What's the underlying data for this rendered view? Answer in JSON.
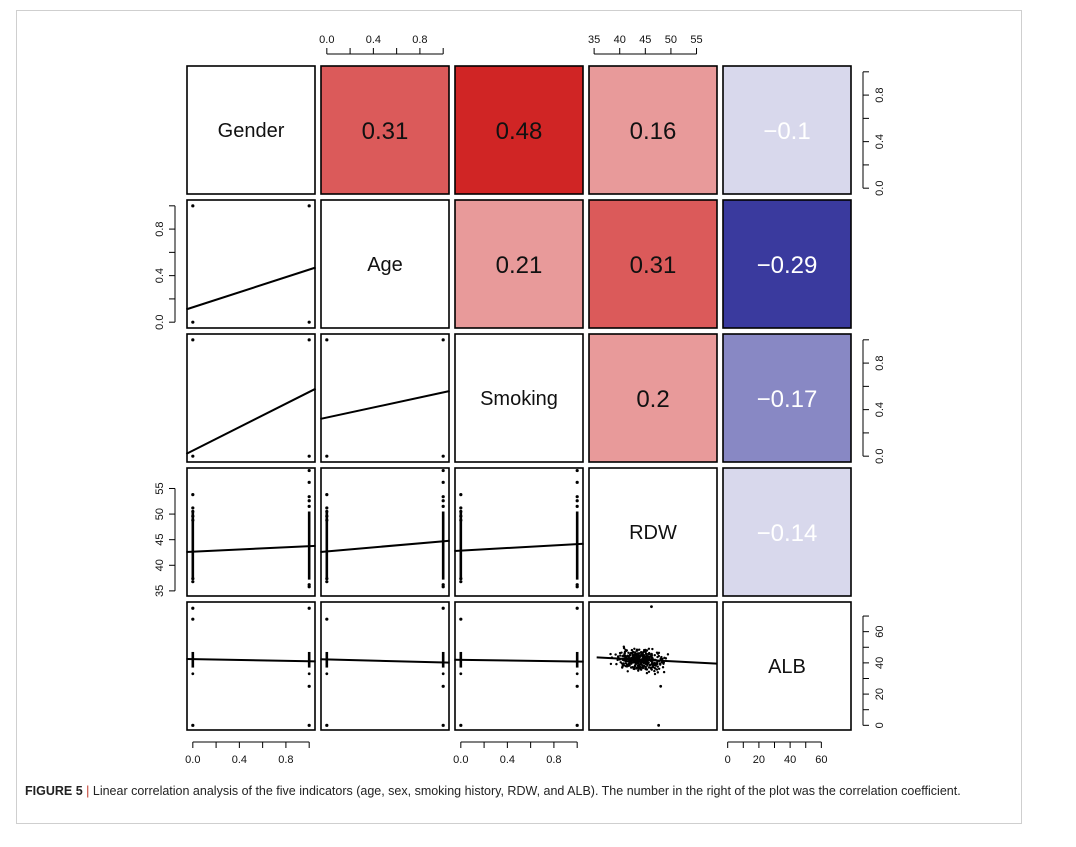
{
  "chart_data": {
    "type": "scatter-matrix",
    "variables": [
      "Gender",
      "Age",
      "Smoking",
      "RDW",
      "ALB"
    ],
    "correlations": [
      {
        "row": "Gender",
        "col": "Age",
        "value": "0.31",
        "r": 0.31,
        "color": "#db5a5a",
        "text_color": "#111111"
      },
      {
        "row": "Gender",
        "col": "Smoking",
        "value": "0.48",
        "r": 0.48,
        "color": "#d02525",
        "text_color": "#111111"
      },
      {
        "row": "Gender",
        "col": "RDW",
        "value": "0.16",
        "r": 0.16,
        "color": "#e89a9a",
        "text_color": "#111111"
      },
      {
        "row": "Gender",
        "col": "ALB",
        "value": "−0.1",
        "r": -0.1,
        "color": "#d8d8ec",
        "text_color": "#ffffff"
      },
      {
        "row": "Age",
        "col": "Smoking",
        "value": "0.21",
        "r": 0.21,
        "color": "#e89a9a",
        "text_color": "#111111"
      },
      {
        "row": "Age",
        "col": "RDW",
        "value": "0.31",
        "r": 0.31,
        "color": "#db5a5a",
        "text_color": "#111111"
      },
      {
        "row": "Age",
        "col": "ALB",
        "value": "−0.29",
        "r": -0.29,
        "color": "#3a3a9e",
        "text_color": "#ffffff"
      },
      {
        "row": "Smoking",
        "col": "RDW",
        "value": "0.2",
        "r": 0.2,
        "color": "#e89a9a",
        "text_color": "#111111"
      },
      {
        "row": "Smoking",
        "col": "ALB",
        "value": "−0.17",
        "r": -0.17,
        "color": "#8888c4",
        "text_color": "#ffffff"
      },
      {
        "row": "RDW",
        "col": "ALB",
        "value": "−0.14",
        "r": -0.14,
        "color": "#d8d8ec",
        "text_color": "#ffffff"
      }
    ],
    "ranges": {
      "Gender": [
        -0.05,
        1.05
      ],
      "Age": [
        -0.05,
        1.05
      ],
      "Smoking": [
        -0.05,
        1.05
      ],
      "RDW": [
        34,
        59
      ],
      "ALB": [
        -3,
        79
      ]
    },
    "regression_lines": [
      {
        "row": "Age",
        "col": "Gender",
        "y0": 0.11,
        "y1": 0.47
      },
      {
        "row": "Smoking",
        "col": "Gender",
        "y0": 0.02,
        "y1": 0.58
      },
      {
        "row": "Smoking",
        "col": "Age",
        "y0": 0.32,
        "y1": 0.56
      },
      {
        "row": "RDW",
        "col": "Gender",
        "y0": 42.6,
        "y1": 43.8
      },
      {
        "row": "RDW",
        "col": "Age",
        "y0": 42.6,
        "y1": 44.8
      },
      {
        "row": "RDW",
        "col": "Smoking",
        "y0": 42.8,
        "y1": 44.2
      },
      {
        "row": "ALB",
        "col": "Gender",
        "y0": 42.5,
        "y1": 41.0
      },
      {
        "row": "ALB",
        "col": "Age",
        "y0": 42.3,
        "y1": 40.2
      },
      {
        "row": "ALB",
        "col": "Smoking",
        "y0": 42.0,
        "y1": 40.8
      },
      {
        "row": "ALB",
        "col": "RDW",
        "y0": 43.5,
        "y1": 39.5
      }
    ],
    "axes": {
      "top_Age": {
        "ticks": [
          0.0,
          0.2,
          0.4,
          0.6,
          0.8,
          1.0
        ],
        "labels": [
          "0.0",
          "",
          "0.4",
          "",
          "0.8",
          ""
        ]
      },
      "top_RDW": {
        "ticks": [
          35,
          40,
          45,
          50,
          55
        ],
        "labels": [
          "35",
          "40",
          "45",
          "50",
          "55"
        ]
      },
      "right_Gender": {
        "ticks": [
          0.0,
          0.2,
          0.4,
          0.6,
          0.8,
          1.0
        ],
        "labels": [
          "0.0",
          "",
          "0.4",
          "",
          "0.8",
          ""
        ]
      },
      "right_Smoking": {
        "ticks": [
          0.0,
          0.2,
          0.4,
          0.6,
          0.8,
          1.0
        ],
        "labels": [
          "0.0",
          "",
          "0.4",
          "",
          "0.8",
          ""
        ]
      },
      "right_ALB": {
        "ticks": [
          0,
          10,
          20,
          30,
          40,
          50,
          60,
          70
        ],
        "labels": [
          "0",
          "",
          "20",
          "",
          "40",
          "",
          "60",
          ""
        ]
      },
      "left_Age": {
        "ticks": [
          0.0,
          0.2,
          0.4,
          0.6,
          0.8,
          1.0
        ],
        "labels": [
          "0.0",
          "",
          "0.4",
          "",
          "0.8",
          ""
        ]
      },
      "left_RDW": {
        "ticks": [
          35,
          40,
          45,
          50,
          55
        ],
        "labels": [
          "35",
          "40",
          "45",
          "50",
          "55"
        ]
      },
      "bottom_Gender": {
        "ticks": [
          0.0,
          0.2,
          0.4,
          0.6,
          0.8,
          1.0
        ],
        "labels": [
          "0.0",
          "",
          "0.4",
          "",
          "0.8",
          ""
        ]
      },
      "bottom_Smoking": {
        "ticks": [
          0.0,
          0.2,
          0.4,
          0.6,
          0.8,
          1.0
        ],
        "labels": [
          "0.0",
          "",
          "0.4",
          "",
          "0.8",
          ""
        ]
      },
      "bottom_ALB": {
        "ticks": [
          0,
          10,
          20,
          30,
          40,
          50,
          60
        ],
        "labels": [
          "0",
          "",
          "20",
          "",
          "40",
          "",
          "60"
        ]
      }
    },
    "notable_points": {
      "rdw_outliers_at_gender0": [
        53.8,
        51.2,
        50.5,
        49.6,
        48.8,
        36.8,
        37.4
      ],
      "rdw_outliers_at_gender1": [
        58.5,
        56.2,
        53.4,
        52.6,
        51.5,
        35.8,
        36.2
      ],
      "alb_outliers_binary": [
        75,
        68,
        25,
        0
      ],
      "alb_vs_rdw_outliers": [
        {
          "x": 46.2,
          "y": 76
        },
        {
          "x": 47.6,
          "y": 0
        },
        {
          "x": 48.0,
          "y": 25
        }
      ]
    },
    "caption": {
      "label": "FIGURE 5",
      "separator": "|",
      "text": "Linear correlation analysis of the five indicators (age, sex, smoking history, RDW, and ALB). The number in the right of the plot was the correlation coefficient."
    }
  }
}
